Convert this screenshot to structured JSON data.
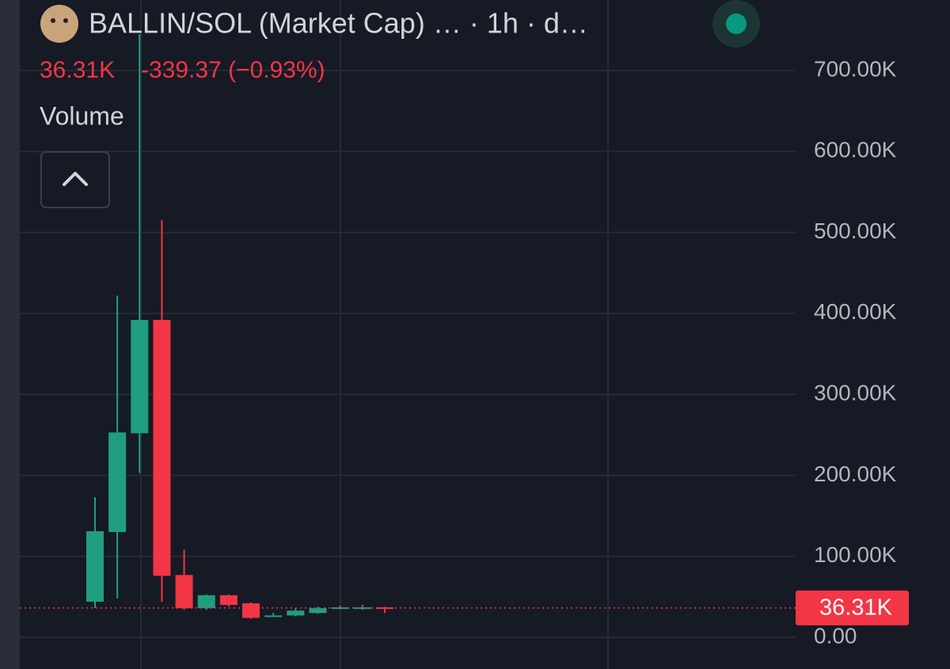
{
  "chart_data": {
    "type": "candlestick",
    "title": "BALLIN/SOL (Market Cap) …  · 1h · d…",
    "price_change": "-339.37 (−0.93%)",
    "volume_label": "Volume",
    "last_price": {
      "value": 36310,
      "label": "36.31K"
    },
    "open": [
      44000,
      130000,
      252000,
      392000,
      77000,
      36000,
      52000,
      42000,
      26000,
      27000,
      30000,
      36000,
      36000,
      37000
    ],
    "high": [
      173000,
      422000,
      745000,
      515000,
      108000,
      53000,
      53000,
      43000,
      30000,
      36000,
      38000,
      39000,
      40000,
      37500
    ],
    "low": [
      36000,
      48000,
      203000,
      44000,
      34000,
      34000,
      38000,
      23000,
      25000,
      26000,
      29000,
      35000,
      34000,
      30000
    ],
    "close": [
      131000,
      253000,
      392000,
      76000,
      36000,
      52000,
      40000,
      24000,
      27000,
      33000,
      36000,
      37000,
      37000,
      36310
    ],
    "up_color": "#1f9f80",
    "down_color": "#f23645",
    "ylim": [
      -39100,
      787000
    ],
    "yticks": [
      {
        "value": 0,
        "label": "0.00"
      },
      {
        "value": 100000,
        "label": "100.00K"
      },
      {
        "value": 200000,
        "label": "200.00K"
      },
      {
        "value": 300000,
        "label": "300.00K"
      },
      {
        "value": 400000,
        "label": "400.00K"
      },
      {
        "value": 500000,
        "label": "500.00K"
      },
      {
        "value": 600000,
        "label": "600.00K"
      },
      {
        "value": 700000,
        "label": "700.00K"
      }
    ],
    "grid": true
  }
}
